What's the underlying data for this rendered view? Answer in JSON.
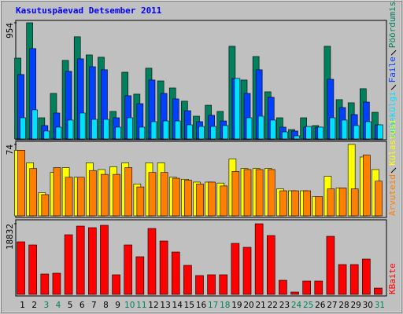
{
  "chart_data": [
    {
      "type": "bar",
      "title": "Kasutuspäevad Detsember 2011",
      "ylim": [
        0,
        954
      ],
      "yticks": [
        954
      ],
      "series": [
        {
          "name": "Pöördumisi",
          "color": "#00805c",
          "values": [
            664,
            954,
            174,
            374,
            645,
            839,
            690,
            671,
            226,
            548,
            368,
            581,
            477,
            419,
            310,
            187,
            277,
            226,
            761,
            484,
            677,
            387,
            174,
            77,
            174,
            110,
            761,
            323,
            297,
            413,
            219
          ]
        },
        {
          "name": "Faile",
          "color": "#0040ff",
          "values": [
            529,
            742,
            110,
            213,
            555,
            658,
            593,
            568,
            174,
            355,
            290,
            484,
            374,
            329,
            232,
            142,
            194,
            148,
            497,
            374,
            568,
            342,
            97,
            65,
            97,
            97,
            490,
            258,
            200,
            303,
            116
          ]
        },
        {
          "name": "Lehekülgi",
          "color": "#00e0ff",
          "values": [
            174,
            239,
            65,
            97,
            155,
            213,
            161,
            161,
            97,
            174,
            97,
            142,
            148,
            148,
            116,
            103,
            103,
            110,
            497,
            174,
            187,
            155,
            58,
            26,
            103,
            97,
            174,
            155,
            110,
            142,
            116
          ]
        }
      ]
    },
    {
      "type": "bar",
      "ylim": [
        0,
        74
      ],
      "yticks": [
        74
      ],
      "series": [
        {
          "name": "Külastusi",
          "color": "#ffff00",
          "values": [
            68,
            55,
            24,
            45,
            50,
            40,
            55,
            48,
            51,
            55,
            33,
            55,
            55,
            40,
            38,
            35,
            35,
            34,
            59,
            49,
            49,
            49,
            28,
            26,
            26,
            20,
            41,
            29,
            74,
            61,
            48
          ]
        },
        {
          "name": "Arvuteid",
          "color": "#ff8000",
          "values": [
            68,
            49,
            22,
            50,
            40,
            40,
            47,
            43,
            43,
            50,
            30,
            45,
            45,
            39,
            37,
            33,
            35,
            31,
            46,
            48,
            48,
            48,
            26,
            26,
            26,
            20,
            28,
            29,
            28,
            63,
            36
          ]
        }
      ]
    },
    {
      "type": "bar",
      "ylim": [
        0,
        18832
      ],
      "yticks": [
        18832
      ],
      "categories": [
        "1",
        "2",
        "3",
        "4",
        "5",
        "6",
        "7",
        "8",
        "9",
        "10",
        "11",
        "12",
        "13",
        "14",
        "15",
        "16",
        "17",
        "18",
        "19",
        "20",
        "21",
        "22",
        "23",
        "24",
        "25",
        "26",
        "27",
        "28",
        "29",
        "30",
        "31"
      ],
      "category_colors": [
        "#000000",
        "#000000",
        "#00805c",
        "#00805c",
        "#000000",
        "#000000",
        "#000000",
        "#000000",
        "#000000",
        "#00805c",
        "#00805c",
        "#000000",
        "#000000",
        "#000000",
        "#000000",
        "#000000",
        "#00805c",
        "#00805c",
        "#000000",
        "#000000",
        "#000000",
        "#000000",
        "#000000",
        "#00805c",
        "#00805c",
        "#000000",
        "#000000",
        "#000000",
        "#000000",
        "#000000",
        "#00805c"
      ],
      "series": [
        {
          "name": "KBaite",
          "color": "#ff0000",
          "values": [
            14016,
            13180,
            5439,
            5648,
            15899,
            18200,
            17782,
            18410,
            5230,
            13180,
            10042,
            17573,
            14226,
            11297,
            7740,
            5021,
            5230,
            5230,
            13598,
            12552,
            18832,
            15690,
            3766,
            628,
            3556,
            3556,
            15481,
            7950,
            7950,
            9414,
            1674
          ]
        }
      ]
    }
  ]
}
